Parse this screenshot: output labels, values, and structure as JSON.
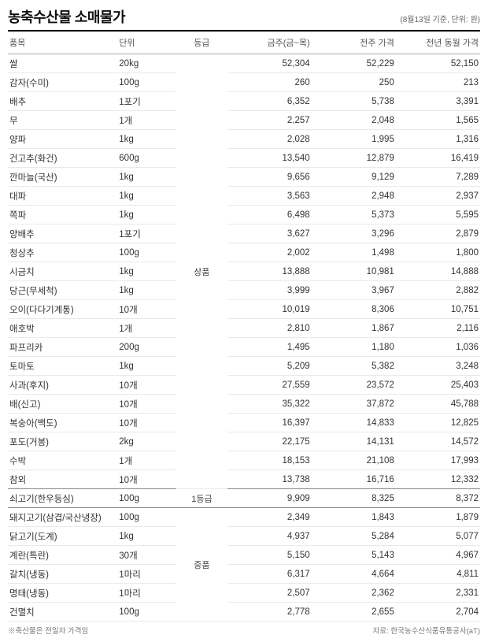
{
  "header": {
    "title": "농축수산물 소매물가",
    "subtitle": "(8월13일 기준, 단위: 원)"
  },
  "columns": {
    "c0": "품목",
    "c1": "단위",
    "c2": "등급",
    "c3": "금주(금~목)",
    "c4": "전주 가격",
    "c5": "전년 동월 가격"
  },
  "grades": {
    "g1": "상품",
    "g2": "1등급",
    "g3": "중품"
  },
  "rows": [
    {
      "item": "쌀",
      "unit": "20kg",
      "p1": "52,304",
      "p2": "52,229",
      "p3": "52,150"
    },
    {
      "item": "감자(수미)",
      "unit": "100g",
      "p1": "260",
      "p2": "250",
      "p3": "213"
    },
    {
      "item": "배추",
      "unit": "1포기",
      "p1": "6,352",
      "p2": "5,738",
      "p3": "3,391"
    },
    {
      "item": "무",
      "unit": "1개",
      "p1": "2,257",
      "p2": "2,048",
      "p3": "1,565"
    },
    {
      "item": "양파",
      "unit": "1kg",
      "p1": "2,028",
      "p2": "1,995",
      "p3": "1,316"
    },
    {
      "item": "건고추(화건)",
      "unit": "600g",
      "p1": "13,540",
      "p2": "12,879",
      "p3": "16,419"
    },
    {
      "item": "깐마늘(국산)",
      "unit": "1kg",
      "p1": "9,656",
      "p2": "9,129",
      "p3": "7,289"
    },
    {
      "item": "대파",
      "unit": "1kg",
      "p1": "3,563",
      "p2": "2,948",
      "p3": "2,937"
    },
    {
      "item": "쪽파",
      "unit": "1kg",
      "p1": "6,498",
      "p2": "5,373",
      "p3": "5,595"
    },
    {
      "item": "양배추",
      "unit": "1포기",
      "p1": "3,627",
      "p2": "3,296",
      "p3": "2,879"
    },
    {
      "item": "청상추",
      "unit": "100g",
      "p1": "2,002",
      "p2": "1,498",
      "p3": "1,800"
    },
    {
      "item": "시금치",
      "unit": "1kg",
      "p1": "13,888",
      "p2": "10,981",
      "p3": "14,888"
    },
    {
      "item": "당근(무세척)",
      "unit": "1kg",
      "p1": "3,999",
      "p2": "3,967",
      "p3": "2,882"
    },
    {
      "item": "오이(다다기계통)",
      "unit": "10개",
      "p1": "10,019",
      "p2": "8,306",
      "p3": "10,751"
    },
    {
      "item": "애호박",
      "unit": "1개",
      "p1": "2,810",
      "p2": "1,867",
      "p3": "2,116"
    },
    {
      "item": "파프리카",
      "unit": "200g",
      "p1": "1,495",
      "p2": "1,180",
      "p3": "1,036"
    },
    {
      "item": "토마토",
      "unit": "1kg",
      "p1": "5,209",
      "p2": "5,382",
      "p3": "3,248"
    },
    {
      "item": "사과(후지)",
      "unit": "10개",
      "p1": "27,559",
      "p2": "23,572",
      "p3": "25,403"
    },
    {
      "item": "배(신고)",
      "unit": "10개",
      "p1": "35,322",
      "p2": "37,872",
      "p3": "45,788"
    },
    {
      "item": "복숭아(백도)",
      "unit": "10개",
      "p1": "16,397",
      "p2": "14,833",
      "p3": "12,825"
    },
    {
      "item": "포도(거봉)",
      "unit": "2kg",
      "p1": "22,175",
      "p2": "14,131",
      "p3": "14,572"
    },
    {
      "item": "수박",
      "unit": "1개",
      "p1": "18,153",
      "p2": "21,108",
      "p3": "17,993"
    },
    {
      "item": "참외",
      "unit": "10개",
      "p1": "13,738",
      "p2": "16,716",
      "p3": "12,332"
    },
    {
      "item": "쇠고기(한우등심)",
      "unit": "100g",
      "p1": "9,909",
      "p2": "8,325",
      "p3": "8,372"
    },
    {
      "item": "돼지고기(삼겹/국산냉장)",
      "unit": "100g",
      "p1": "2,349",
      "p2": "1,843",
      "p3": "1,879"
    },
    {
      "item": "닭고기(도계)",
      "unit": "1kg",
      "p1": "4,937",
      "p2": "5,284",
      "p3": "5,077"
    },
    {
      "item": "계란(특란)",
      "unit": "30개",
      "p1": "5,150",
      "p2": "5,143",
      "p3": "4,967"
    },
    {
      "item": "갈치(냉동)",
      "unit": "1마리",
      "p1": "6,317",
      "p2": "4,664",
      "p3": "4,811"
    },
    {
      "item": "명태(냉동)",
      "unit": "1마리",
      "p1": "2,507",
      "p2": "2,362",
      "p3": "2,331"
    },
    {
      "item": "건멸치",
      "unit": "100g",
      "p1": "2,778",
      "p2": "2,655",
      "p3": "2,704"
    }
  ],
  "footer": {
    "note": "※축산물은 전일자 가격임",
    "source": "자료: 한국농수산식품유통공사(aT)"
  }
}
